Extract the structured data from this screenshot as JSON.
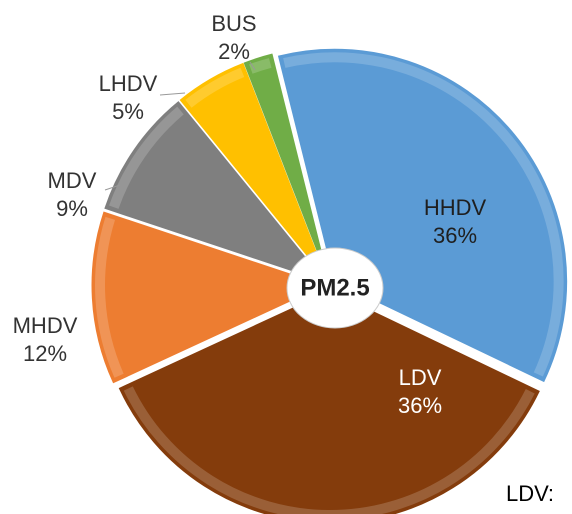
{
  "chart_data": {
    "type": "pie",
    "center_label": "PM2.5",
    "categories": [
      "HHDV",
      "LDV",
      "MHDV",
      "MDV",
      "LHDV",
      "BUS"
    ],
    "values": [
      36,
      36,
      12,
      9,
      5,
      2
    ],
    "value_labels": [
      "36%",
      "36%",
      "12%",
      "9%",
      "5%",
      "2%"
    ],
    "colors": [
      "#5b9bd5",
      "#843c0c",
      "#ed7d31",
      "#7f7f7f",
      "#ffc000",
      "#70ad47"
    ],
    "note": "LDV:"
  }
}
